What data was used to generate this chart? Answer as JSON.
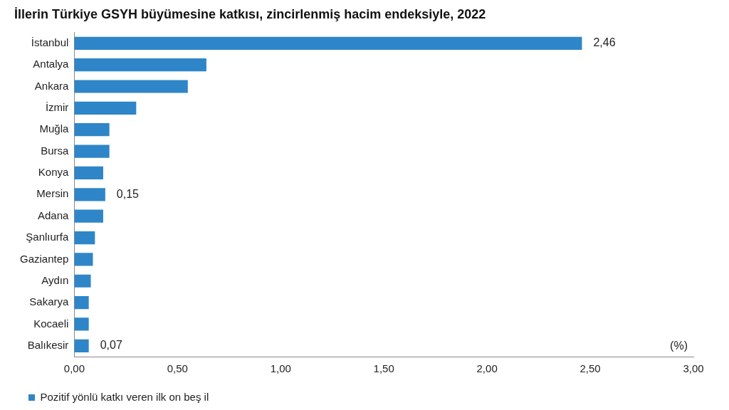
{
  "chart_data": {
    "type": "bar",
    "orientation": "horizontal",
    "title": "İllerin Türkiye GSYH büyümesine katkısı, zincirlenmiş hacim endeksiyle, 2022",
    "categories": [
      "İstanbul",
      "Antalya",
      "Ankara",
      "İzmir",
      "Muğla",
      "Bursa",
      "Konya",
      "Mersin",
      "Adana",
      "Şanlıurfa",
      "Gaziantep",
      "Aydın",
      "Sakarya",
      "Kocaeli",
      "Balıkesir"
    ],
    "series": [
      {
        "name": "Pozitif yönlü katkı veren ilk on beş il",
        "color": "#2e86c8",
        "values": [
          2.46,
          0.64,
          0.55,
          0.3,
          0.17,
          0.17,
          0.14,
          0.15,
          0.14,
          0.1,
          0.09,
          0.08,
          0.07,
          0.07,
          0.07
        ],
        "value_labels": [
          "2,46",
          null,
          null,
          null,
          null,
          null,
          null,
          "0,15",
          null,
          null,
          null,
          null,
          null,
          null,
          "0,07"
        ]
      }
    ],
    "xlim": [
      0,
      3
    ],
    "xticks": [
      {
        "value": 0,
        "label": "0,00"
      },
      {
        "value": 0.5,
        "label": "0,50"
      },
      {
        "value": 1,
        "label": "1,00"
      },
      {
        "value": 1.5,
        "label": "1,50"
      },
      {
        "value": 2,
        "label": "2,00"
      },
      {
        "value": 2.5,
        "label": "2,50"
      },
      {
        "value": 3,
        "label": "3,00"
      }
    ],
    "annotations": [
      "(%)"
    ],
    "grid": false,
    "legend": "bottom"
  }
}
